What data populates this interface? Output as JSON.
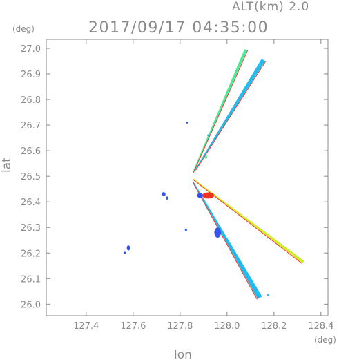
{
  "header": {
    "altitude_label": "ALT(km)  2.0",
    "timestamp": "2017/09/17 04:35:00"
  },
  "chart_data": {
    "type": "scatter",
    "xlabel": "lon",
    "ylabel": "lat",
    "x_unit": "(deg)",
    "y_unit": "(deg)",
    "xlim": [
      127.23,
      128.43
    ],
    "ylim": [
      25.955,
      27.035
    ],
    "x_ticks": [
      "127.4",
      "127.6",
      "127.8",
      "128.0",
      "128.2",
      "128.4"
    ],
    "y_ticks": [
      "26.0",
      "26.1",
      "26.2",
      "26.3",
      "26.4",
      "26.5",
      "26.6",
      "26.7",
      "26.8",
      "26.9",
      "27.0"
    ],
    "grid": false,
    "colors": {
      "axis": "#8a8a8a",
      "low": "#3355ee",
      "mid_low": "#22bbee",
      "mid": "#44ee99",
      "mid_high": "#ccee22",
      "high": "#ee3322"
    },
    "beams": [
      {
        "from": [
          127.855,
          26.515
        ],
        "to": [
          128.08,
          26.995
        ],
        "width": 0.012,
        "color": "mid",
        "edge": "high"
      },
      {
        "from": [
          127.865,
          26.525
        ],
        "to": [
          128.155,
          26.955
        ],
        "width": 0.018,
        "color": "mid_low",
        "edge": "high"
      },
      {
        "from": [
          127.855,
          26.49
        ],
        "to": [
          128.325,
          26.165
        ],
        "width": 0.012,
        "color": "mid_high",
        "edge": "high"
      },
      {
        "from": [
          127.855,
          26.48
        ],
        "to": [
          128.14,
          26.025
        ],
        "width": 0.022,
        "color": "mid_low",
        "edge": "high"
      }
    ],
    "echo_patches": [
      {
        "x": 127.92,
        "y": 26.425,
        "rx": 0.025,
        "ry": 0.012,
        "color": "high"
      },
      {
        "x": 127.885,
        "y": 26.425,
        "rx": 0.012,
        "ry": 0.01,
        "color": "low"
      },
      {
        "x": 127.96,
        "y": 26.28,
        "rx": 0.014,
        "ry": 0.02,
        "color": "low"
      },
      {
        "x": 127.73,
        "y": 26.43,
        "rx": 0.008,
        "ry": 0.008,
        "color": "low"
      },
      {
        "x": 127.745,
        "y": 26.415,
        "rx": 0.005,
        "ry": 0.006,
        "color": "low"
      },
      {
        "x": 127.58,
        "y": 26.22,
        "rx": 0.007,
        "ry": 0.01,
        "color": "low"
      },
      {
        "x": 127.565,
        "y": 26.2,
        "rx": 0.004,
        "ry": 0.005,
        "color": "low"
      },
      {
        "x": 127.825,
        "y": 26.29,
        "rx": 0.004,
        "ry": 0.006,
        "color": "low"
      },
      {
        "x": 127.83,
        "y": 26.71,
        "rx": 0.003,
        "ry": 0.003,
        "color": "low"
      },
      {
        "x": 127.92,
        "y": 26.66,
        "rx": 0.003,
        "ry": 0.004,
        "color": "mid_low"
      },
      {
        "x": 127.91,
        "y": 26.575,
        "rx": 0.005,
        "ry": 0.006,
        "color": "mid"
      },
      {
        "x": 128.175,
        "y": 26.035,
        "rx": 0.004,
        "ry": 0.003,
        "color": "mid_low"
      }
    ]
  }
}
